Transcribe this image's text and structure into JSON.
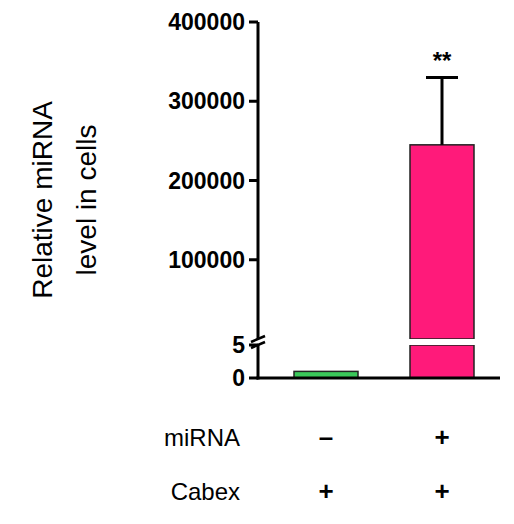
{
  "chart_data": {
    "type": "bar",
    "y_label": "Relative miRNA\nlevel in cells",
    "categories": [
      null,
      null
    ],
    "values": [
      1,
      245000
    ],
    "errors": [
      null,
      85000
    ],
    "significance": [
      null,
      "**"
    ],
    "colors": [
      "#3ac85a",
      "#ff1a7a"
    ],
    "ylim": [
      [
        0,
        5
      ],
      [
        5,
        400000
      ]
    ],
    "yticks": [
      [
        0,
        5
      ],
      [
        100000,
        200000,
        300000,
        400000
      ]
    ],
    "conditions": [
      {
        "name": "miRNA",
        "values": [
          "–",
          "+"
        ]
      },
      {
        "name": "Cabex",
        "values": [
          "+",
          "+"
        ]
      }
    ],
    "grid": false
  }
}
